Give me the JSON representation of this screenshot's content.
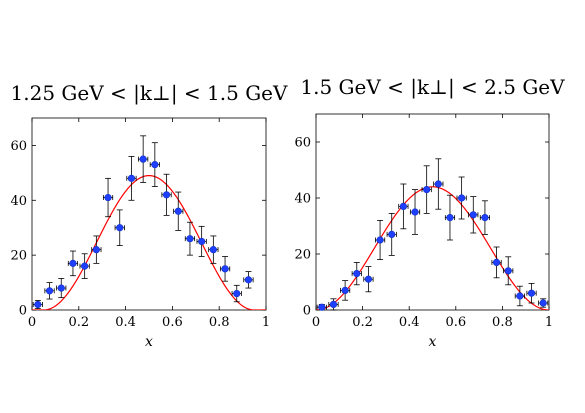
{
  "chart_data": [
    {
      "type": "scatter",
      "title": "1.25 GeV < |k⊥| < 1.5 GeV",
      "xlabel": "x",
      "ylabel": "",
      "xlim": [
        0,
        1
      ],
      "ylim": [
        0,
        70
      ],
      "xticks": [
        "0",
        "0.2",
        "0.4",
        "0.6",
        "0.8",
        "1"
      ],
      "yticks": [
        "0",
        "20",
        "40",
        "60"
      ],
      "grid": false,
      "series": [
        {
          "kind": "points",
          "color": "#1f3fff",
          "x": [
            0.025,
            0.075,
            0.125,
            0.175,
            0.225,
            0.275,
            0.325,
            0.375,
            0.425,
            0.475,
            0.525,
            0.575,
            0.625,
            0.675,
            0.725,
            0.775,
            0.825,
            0.875,
            0.925
          ],
          "y": [
            2,
            7,
            8,
            17,
            16,
            22,
            41,
            30,
            48,
            55,
            53,
            42,
            36,
            26,
            25,
            22,
            15,
            6,
            11
          ],
          "xerr": 0.02,
          "yerr": [
            1.5,
            3,
            3.5,
            4.5,
            4.5,
            5,
            7,
            6.5,
            8,
            8.5,
            8,
            7.5,
            7,
            6,
            5.5,
            5,
            4.5,
            3,
            3
          ]
        },
        {
          "kind": "fit-curve",
          "color": "#ff0000",
          "peak_x": 0.5,
          "peak_y": 49,
          "zero_at": [
            0.05,
            0.95
          ]
        }
      ]
    },
    {
      "type": "scatter",
      "title": "1.5 GeV < |k⊥| < 2.5 GeV",
      "xlabel": "x",
      "ylabel": "",
      "xlim": [
        0,
        1
      ],
      "ylim": [
        0,
        70
      ],
      "xticks": [
        "0",
        "0.2",
        "0.4",
        "0.6",
        "0.8",
        "1"
      ],
      "yticks": [
        "0",
        "20",
        "40",
        "60"
      ],
      "grid": false,
      "series": [
        {
          "kind": "points",
          "color": "#1f3fff",
          "x": [
            0.025,
            0.075,
            0.125,
            0.175,
            0.225,
            0.275,
            0.325,
            0.375,
            0.425,
            0.475,
            0.525,
            0.575,
            0.625,
            0.675,
            0.725,
            0.775,
            0.825,
            0.875,
            0.925,
            0.975
          ],
          "y": [
            1,
            2,
            7,
            13,
            11,
            25,
            27,
            37,
            35,
            43,
            45,
            33,
            40,
            34,
            33,
            17,
            14,
            5,
            6,
            2.5
          ],
          "xerr": 0.02,
          "yerr": [
            1,
            2,
            3.5,
            4,
            4.5,
            7,
            7.5,
            8,
            8,
            8.5,
            9,
            8,
            7.5,
            6.5,
            6,
            5.5,
            5,
            3.5,
            3.5,
            1.5
          ]
        },
        {
          "kind": "fit-curve",
          "color": "#ff0000",
          "peak_x": 0.5,
          "peak_y": 44,
          "zero_at": [
            0.0,
            1.0
          ]
        }
      ]
    }
  ]
}
